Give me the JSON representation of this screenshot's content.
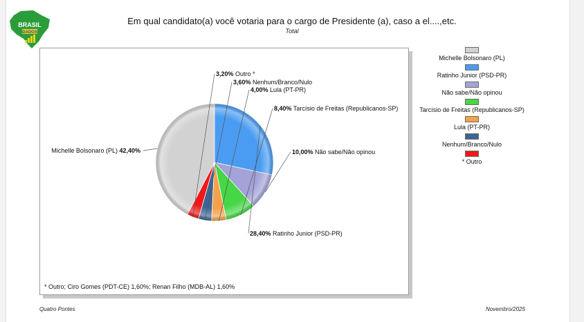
{
  "header": {
    "title": "Em qual candidato(a) você votaria para o cargo de Presidente (a), caso a el....,etc.",
    "subtitle": "Total"
  },
  "logo": {
    "line1": "BRASIL",
    "line2": "DADOS",
    "colors": {
      "green": "#2a9d3a",
      "yellow": "#f2d21b",
      "blue": "#1f4aa8"
    }
  },
  "chart_data": {
    "type": "pie",
    "title": "Em qual candidato(a) você votaria para o cargo de Presidente (a), caso a el....,etc.",
    "subtitle": "Total",
    "legend_position": "right",
    "slices": [
      {
        "label": "Michelle Bolsonaro (PL)",
        "value": 42.4,
        "display": "42,40%",
        "color": "#d2d2d2"
      },
      {
        "label": "Ratinho Junior (PSD-PR)",
        "value": 28.4,
        "display": "28,40%",
        "color": "#4a9cf2"
      },
      {
        "label": "Não sabe/Não opinou",
        "value": 10.0,
        "display": "10,00%",
        "color": "#a3a3d8"
      },
      {
        "label": "Tarcísio de Freitas (Republicanos-SP)",
        "value": 8.4,
        "display": "8,40%",
        "color": "#46d646"
      },
      {
        "label": "Lula (PT-PR)",
        "value": 4.0,
        "display": "4,00%",
        "color": "#f4a14a"
      },
      {
        "label": "Nenhum/Branco/Nulo",
        "value": 3.6,
        "display": "3,60%",
        "color": "#3d6593"
      },
      {
        "label": "* Outro",
        "value": 3.2,
        "display": "3,20%",
        "color": "#f01818"
      }
    ],
    "slice_labels": [
      "Michelle Bolsonaro (PL)",
      "Ratinho Junior (PSD-PR)",
      "Não sabe/Não opinou",
      "Tarcísio de Freitas (Republicanos-SP)",
      "Lula (PT-PR)",
      "Nenhum/Branco/Nulo",
      "Outro *"
    ]
  },
  "footnote": "* Outro; Ciro Gomes (PDT-CE) 1,60%; Renan Filho (MDB-AL) 1,60%",
  "footer": {
    "source": "Quatro Pontes",
    "date": "Novembro/2025"
  }
}
